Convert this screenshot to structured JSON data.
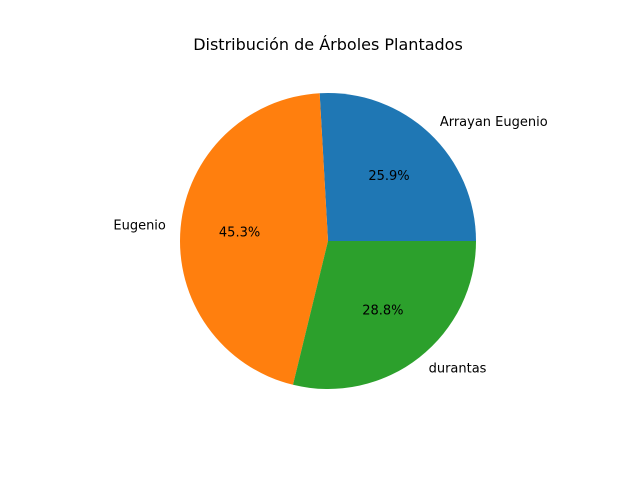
{
  "chart_data": {
    "type": "pie",
    "title": "Distribución de Árboles Plantados",
    "categories": [
      "Arrayan Eugenio",
      "Eugenio",
      "durantas"
    ],
    "values": [
      25.9,
      45.3,
      28.8
    ],
    "percent_labels": [
      "25.9%",
      "45.3%",
      "28.8%"
    ],
    "colors": [
      "#1f77b4",
      "#ff7f0e",
      "#2ca02c"
    ],
    "start_angle_deg": 0,
    "direction": "counterclockwise"
  }
}
